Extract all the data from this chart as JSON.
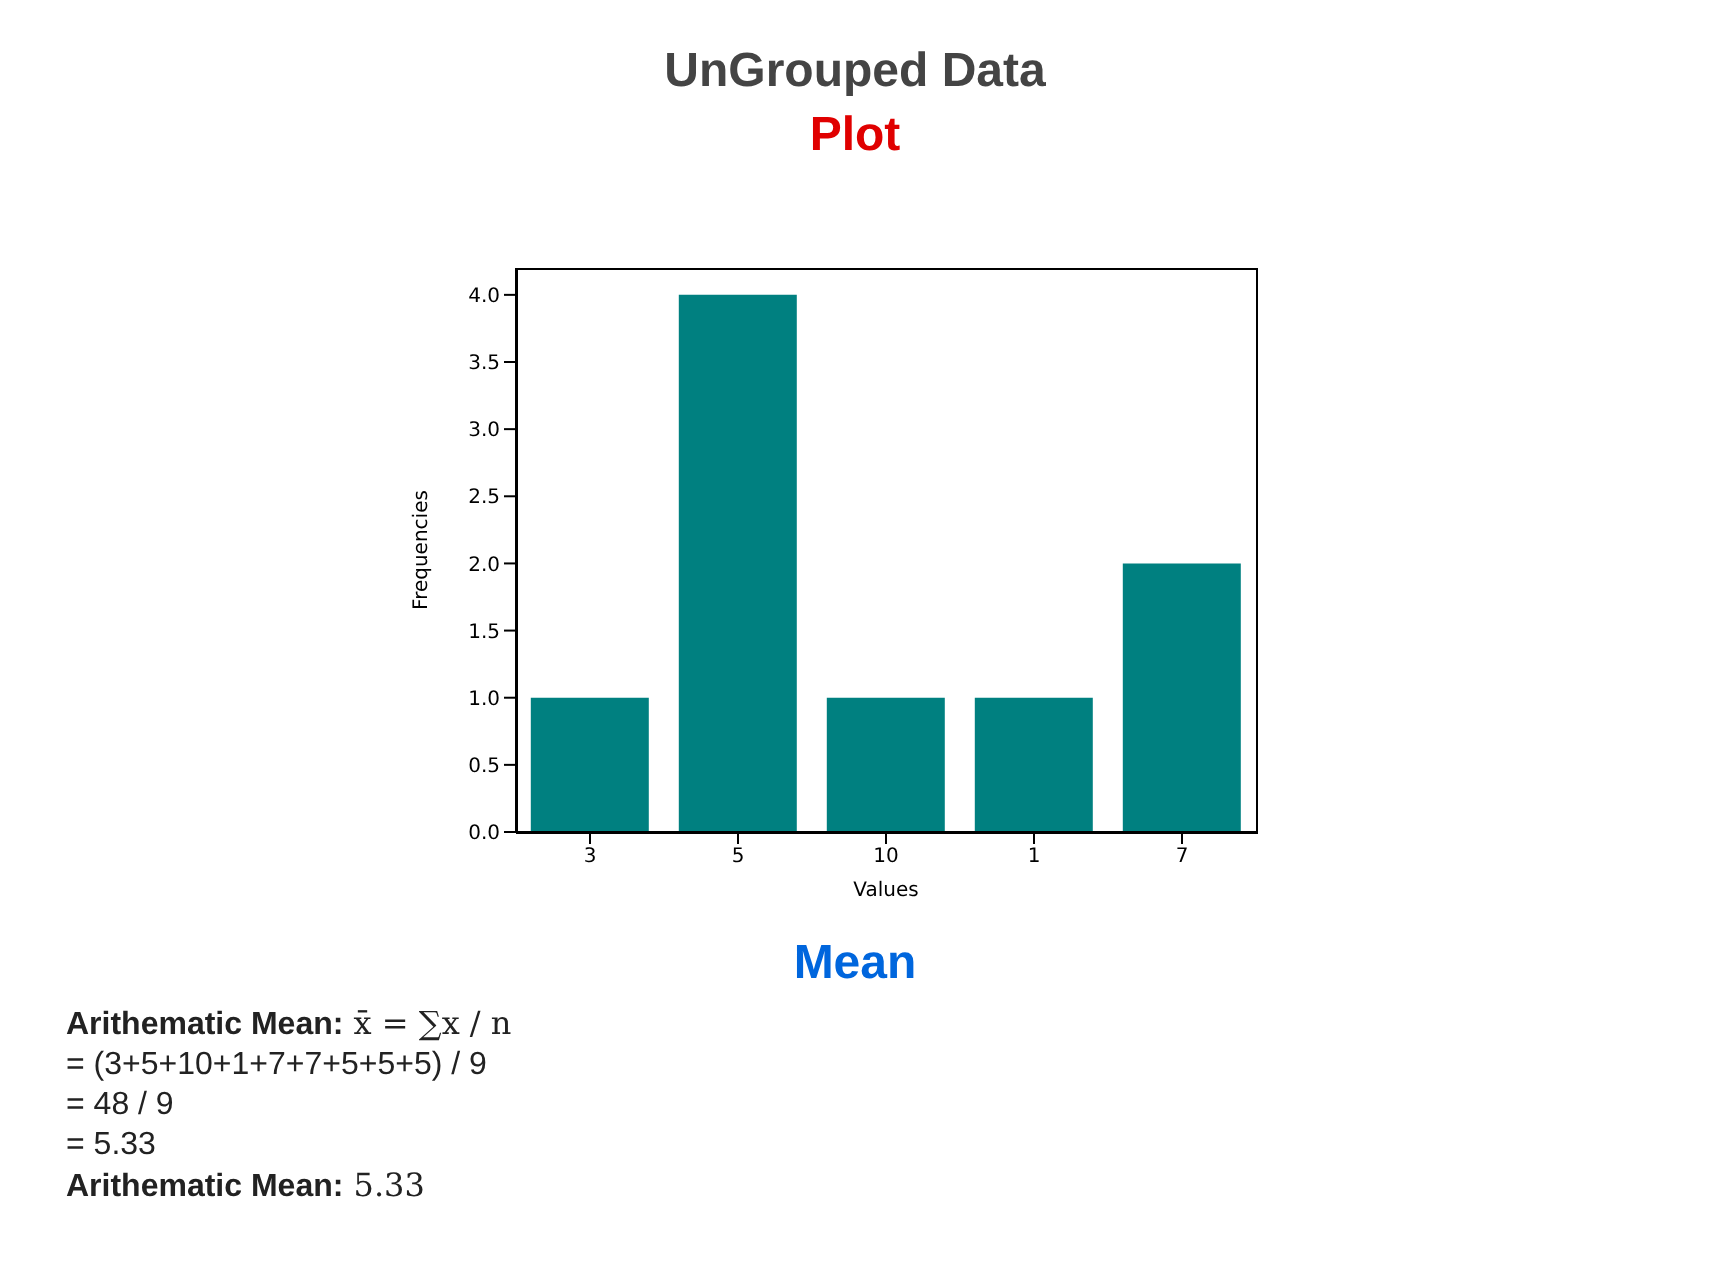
{
  "chart_data": {
    "type": "bar",
    "title": "UnGrouped Data",
    "subtitle": "Plot",
    "xlabel": "Values",
    "ylabel": "Frequencies",
    "categories": [
      "3",
      "5",
      "10",
      "1",
      "7"
    ],
    "values": [
      1,
      4,
      1,
      1,
      2
    ],
    "color": "#008080",
    "ylim": [
      0,
      4.2
    ],
    "yticks": [
      {
        "value": 0,
        "label": "0.0"
      },
      {
        "value": 0.5,
        "label": "0.5"
      },
      {
        "value": 1,
        "label": "1.0"
      },
      {
        "value": 1.5,
        "label": "1.5"
      },
      {
        "value": 2,
        "label": "2.0"
      },
      {
        "value": 2.5,
        "label": "2.5"
      },
      {
        "value": 3,
        "label": "3.0"
      },
      {
        "value": 3.5,
        "label": "3.5"
      },
      {
        "value": 4,
        "label": "4.0"
      }
    ],
    "grid": false,
    "legend": false,
    "annotations": [
      "Mean",
      "Arithematic Mean: x̄ = ∑x / n",
      "= (3+5+10+1+7+7+5+5+5) / 9",
      "= 48 / 9",
      "= 5.33",
      "Arithematic Mean: 5.33"
    ]
  }
}
